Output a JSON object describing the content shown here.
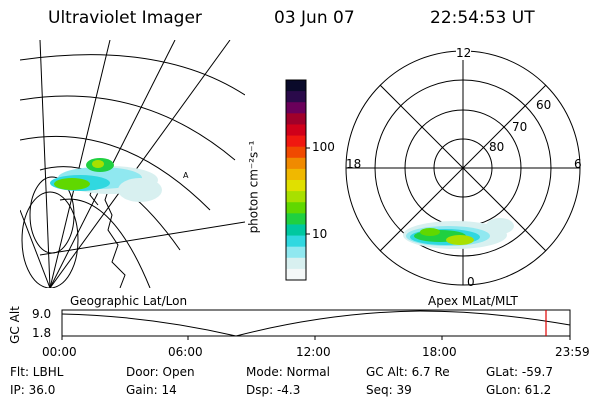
{
  "header": {
    "title": "Ultraviolet Imager",
    "date": "03 Jun 07",
    "time": "22:54:53 UT"
  },
  "colorbar": {
    "unit_label": "photon cm⁻²s⁻¹",
    "tick_100": "100",
    "tick_10": "10",
    "colors": [
      "#0a0a2a",
      "#2a0a4a",
      "#6a005a",
      "#a0002a",
      "#d0001a",
      "#f01810",
      "#f04a00",
      "#f08a00",
      "#f0b800",
      "#e0e000",
      "#a8e000",
      "#60d800",
      "#20d040",
      "#00c8a0",
      "#30d8e0",
      "#90e8f0",
      "#d8f0f0",
      "#f4f8f8"
    ]
  },
  "polar_plot": {
    "label_top": "12",
    "label_bottom": "0",
    "label_left": "18",
    "label_right": "6",
    "ring_labels": [
      "60",
      "70",
      "80"
    ]
  },
  "timeline": {
    "left_label": "Geographic Lat/Lon",
    "right_label": "Apex  MLat/MLT",
    "axis_label": "GC Alt",
    "y_top": "9.0",
    "y_bottom": "1.8",
    "ticks": [
      "00:00",
      "06:00",
      "12:00",
      "18:00",
      "23:59"
    ]
  },
  "footer": {
    "filter": "Flt: LBHL",
    "door": "Door: Open",
    "mode": "Mode: Normal",
    "gc_alt": "GC Alt: 6.7 Re",
    "glat": "GLat: -59.7",
    "ip": "IP: 36.0",
    "gain": "Gain: 14",
    "dsp": "Dsp:    -4.3",
    "seq": "Seq: 39",
    "glon": "GLon:  61.2"
  }
}
